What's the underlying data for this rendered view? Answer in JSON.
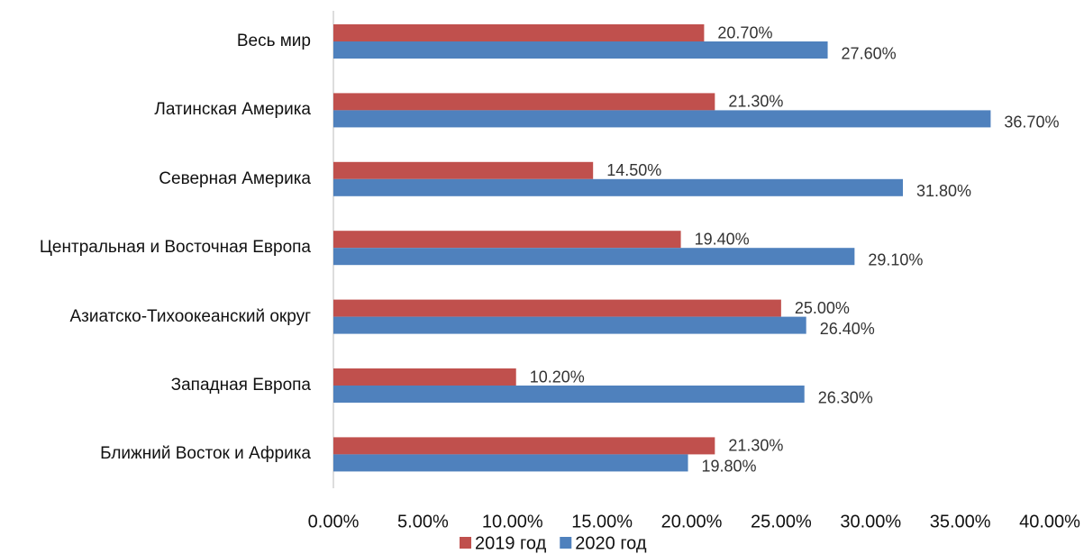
{
  "chart_data": {
    "type": "barh",
    "categories": [
      "Весь мир",
      "Латинская Америка",
      "Северная Америка",
      "Центральная и Восточная Европа",
      "Азиатско-Тихоокеанский округ",
      "Западная Европа",
      "Ближний Восток и Африка"
    ],
    "series": [
      {
        "name": "2019 год",
        "color": "#c0504d",
        "values": [
          20.7,
          21.3,
          14.5,
          19.4,
          25.0,
          10.2,
          21.3
        ],
        "value_labels": [
          "20.70%",
          "21.30%",
          "14.50%",
          "19.40%",
          "25.00%",
          "10.20%",
          "21.30%"
        ]
      },
      {
        "name": "2020 год",
        "color": "#4f81bd",
        "values": [
          27.6,
          36.7,
          31.8,
          29.1,
          26.4,
          26.3,
          19.8
        ],
        "value_labels": [
          "27.60%",
          "36.70%",
          "31.80%",
          "29.10%",
          "26.40%",
          "26.30%",
          "19.80%"
        ]
      }
    ],
    "xlim": [
      0,
      40
    ],
    "xticks": [
      {
        "value": 0,
        "label": "0.00%"
      },
      {
        "value": 5,
        "label": "5.00%"
      },
      {
        "value": 10,
        "label": "10.00%"
      },
      {
        "value": 15,
        "label": "15.00%"
      },
      {
        "value": 20,
        "label": "20.00%"
      },
      {
        "value": 25,
        "label": "25.00%"
      },
      {
        "value": 30,
        "label": "30.00%"
      },
      {
        "value": 35,
        "label": "35.00%"
      },
      {
        "value": 40,
        "label": "40.00%"
      }
    ],
    "legend": "bottom"
  }
}
